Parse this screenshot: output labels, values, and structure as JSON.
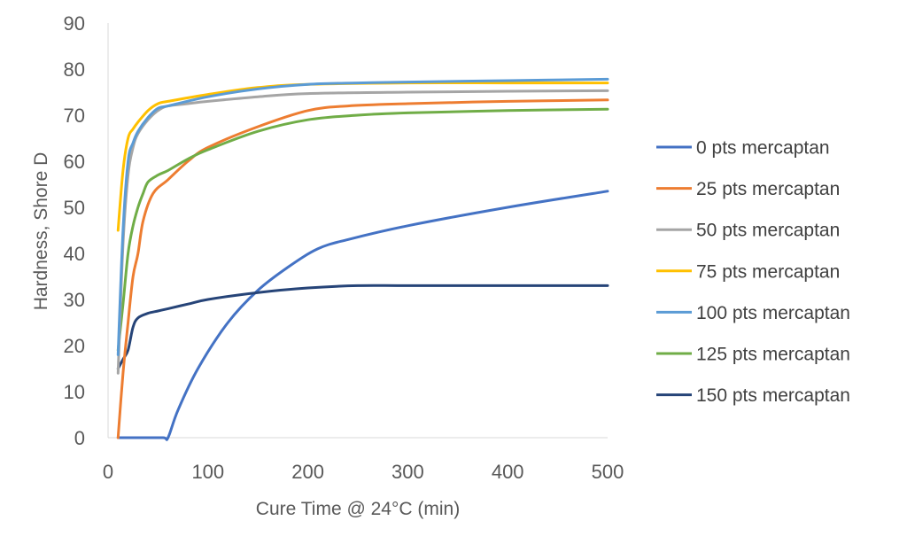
{
  "chart_data": {
    "type": "line",
    "xlabel": "Cure Time @ 24°C (min)",
    "ylabel": "Hardness, Shore D",
    "xlim": [
      0,
      500
    ],
    "ylim": [
      0,
      90
    ],
    "xticks": [
      0,
      100,
      200,
      300,
      400,
      500
    ],
    "yticks": [
      0,
      10,
      20,
      30,
      40,
      50,
      60,
      70,
      80,
      90
    ],
    "grid": false,
    "legend_position": "right",
    "series": [
      {
        "name": "0 pts mercaptan",
        "color": "#4472C4",
        "points": [
          [
            10,
            0
          ],
          [
            30,
            0
          ],
          [
            55,
            0
          ],
          [
            60,
            0
          ],
          [
            70,
            6
          ],
          [
            90,
            15
          ],
          [
            120,
            25
          ],
          [
            150,
            32
          ],
          [
            180,
            37
          ],
          [
            210,
            41
          ],
          [
            240,
            43
          ],
          [
            300,
            46
          ],
          [
            400,
            50
          ],
          [
            500,
            53.5
          ]
        ]
      },
      {
        "name": "25 pts mercaptan",
        "color": "#ED7D31",
        "points": [
          [
            10,
            0
          ],
          [
            15,
            14
          ],
          [
            20,
            25
          ],
          [
            25,
            35
          ],
          [
            30,
            40
          ],
          [
            35,
            47
          ],
          [
            45,
            53
          ],
          [
            60,
            56
          ],
          [
            80,
            60
          ],
          [
            100,
            63
          ],
          [
            150,
            67.5
          ],
          [
            200,
            71
          ],
          [
            240,
            72
          ],
          [
            300,
            72.5
          ],
          [
            400,
            73
          ],
          [
            500,
            73.3
          ]
        ]
      },
      {
        "name": "50 pts mercaptan",
        "color": "#A5A5A5",
        "points": [
          [
            10,
            14
          ],
          [
            15,
            42
          ],
          [
            20,
            57
          ],
          [
            25,
            63
          ],
          [
            30,
            66
          ],
          [
            40,
            69
          ],
          [
            50,
            71
          ],
          [
            60,
            72
          ],
          [
            80,
            72.5
          ],
          [
            100,
            73
          ],
          [
            150,
            74
          ],
          [
            200,
            74.7
          ],
          [
            300,
            75
          ],
          [
            400,
            75.2
          ],
          [
            500,
            75.3
          ]
        ]
      },
      {
        "name": "75 pts mercaptan",
        "color": "#FFC000",
        "points": [
          [
            10,
            45
          ],
          [
            15,
            58
          ],
          [
            20,
            65
          ],
          [
            25,
            67
          ],
          [
            30,
            68.5
          ],
          [
            40,
            71
          ],
          [
            50,
            72.5
          ],
          [
            60,
            73
          ],
          [
            100,
            74.5
          ],
          [
            150,
            76
          ],
          [
            200,
            76.7
          ],
          [
            300,
            77
          ],
          [
            400,
            77
          ],
          [
            500,
            77
          ]
        ]
      },
      {
        "name": "100 pts mercaptan",
        "color": "#5B9BD5",
        "points": [
          [
            10,
            18
          ],
          [
            15,
            45
          ],
          [
            20,
            60
          ],
          [
            25,
            64
          ],
          [
            30,
            66.5
          ],
          [
            40,
            69.5
          ],
          [
            50,
            71.5
          ],
          [
            60,
            72
          ],
          [
            100,
            74
          ],
          [
            150,
            75.7
          ],
          [
            200,
            76.7
          ],
          [
            250,
            77
          ],
          [
            300,
            77.2
          ],
          [
            400,
            77.5
          ],
          [
            500,
            77.8
          ]
        ]
      },
      {
        "name": "125 pts mercaptan",
        "color": "#70AD47",
        "points": [
          [
            10,
            19
          ],
          [
            15,
            29
          ],
          [
            20,
            40
          ],
          [
            25,
            46
          ],
          [
            30,
            50
          ],
          [
            35,
            53
          ],
          [
            40,
            55.5
          ],
          [
            50,
            57
          ],
          [
            60,
            58
          ],
          [
            80,
            60.5
          ],
          [
            100,
            62.5
          ],
          [
            150,
            66.5
          ],
          [
            200,
            69
          ],
          [
            250,
            70
          ],
          [
            300,
            70.5
          ],
          [
            400,
            71
          ],
          [
            500,
            71.3
          ]
        ]
      },
      {
        "name": "150 pts mercaptan",
        "color": "#264478",
        "points": [
          [
            10,
            15
          ],
          [
            15,
            17
          ],
          [
            20,
            19
          ],
          [
            25,
            24
          ],
          [
            30,
            26
          ],
          [
            40,
            27
          ],
          [
            50,
            27.5
          ],
          [
            60,
            28
          ],
          [
            80,
            29
          ],
          [
            100,
            30
          ],
          [
            150,
            31.5
          ],
          [
            200,
            32.5
          ],
          [
            250,
            33
          ],
          [
            300,
            33
          ],
          [
            400,
            33
          ],
          [
            500,
            33
          ]
        ]
      }
    ]
  }
}
